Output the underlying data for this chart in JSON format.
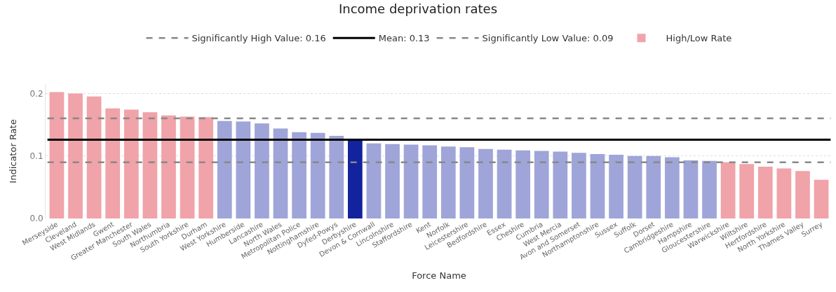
{
  "chart_data": {
    "type": "bar",
    "title": "Income deprivation rates",
    "xlabel": "Force Name",
    "ylabel": "Indicator Rate",
    "categories": [
      "Merseyside",
      "Cleveland",
      "West Midlands",
      "Gwent",
      "Greater Manchester",
      "South Wales",
      "Northumbria",
      "South Yorkshire",
      "Durham",
      "West Yorkshire",
      "Humberside",
      "Lancashire",
      "North Wales",
      "Metropolitan Police",
      "Nottinghamshire",
      "Dyfed-Powys",
      "Derbyshire",
      "Devon & Cornwall",
      "Lincolnshire",
      "Staffordshire",
      "Kent",
      "Norfolk",
      "Leicestershire",
      "Bedfordshire",
      "Essex",
      "Cheshire",
      "Cumbria",
      "West Mercia",
      "Avon and Somerset",
      "Northamptonshire",
      "Sussex",
      "Suffolk",
      "Dorset",
      "Cambridgeshire",
      "Hampshire",
      "Gloucestershire",
      "Warwickshire",
      "Wiltshire",
      "Hertfordshire",
      "North Yorkshire",
      "Thames Valley",
      "Surrey"
    ],
    "series": [
      {
        "name": "High/Low Rate",
        "values": [
          0.202,
          0.2,
          0.195,
          0.176,
          0.174,
          0.17,
          0.165,
          0.163,
          0.162,
          0.156,
          0.155,
          0.152,
          0.144,
          0.138,
          0.137,
          0.132,
          0.126,
          0.12,
          0.119,
          0.118,
          0.117,
          0.115,
          0.114,
          0.111,
          0.11,
          0.109,
          0.108,
          0.107,
          0.105,
          0.103,
          0.102,
          0.1,
          0.1,
          0.098,
          0.093,
          0.092,
          0.09,
          0.087,
          0.083,
          0.08,
          0.076,
          0.062
        ],
        "colors": [
          "#f0a3a9",
          "#f0a3a9",
          "#f0a3a9",
          "#f0a3a9",
          "#f0a3a9",
          "#f0a3a9",
          "#f0a3a9",
          "#f0a3a9",
          "#f0a3a9",
          "#9fa5d8",
          "#9fa5d8",
          "#9fa5d8",
          "#9fa5d8",
          "#9fa5d8",
          "#9fa5d8",
          "#9fa5d8",
          "#13239e",
          "#9fa5d8",
          "#9fa5d8",
          "#9fa5d8",
          "#9fa5d8",
          "#9fa5d8",
          "#9fa5d8",
          "#9fa5d8",
          "#9fa5d8",
          "#9fa5d8",
          "#9fa5d8",
          "#9fa5d8",
          "#9fa5d8",
          "#9fa5d8",
          "#9fa5d8",
          "#9fa5d8",
          "#9fa5d8",
          "#9fa5d8",
          "#9fa5d8",
          "#9fa5d8",
          "#f0a3a9",
          "#f0a3a9",
          "#f0a3a9",
          "#f0a3a9",
          "#f0a3a9",
          "#f0a3a9"
        ]
      }
    ],
    "ylim": [
      0,
      0.215
    ],
    "yticks": [
      {
        "value": 0,
        "label": "0.0"
      },
      {
        "value": 0.1,
        "label": "0.1"
      },
      {
        "value": 0.2,
        "label": "0.2"
      }
    ],
    "grid": "y",
    "legend": "top",
    "ref_lines": [
      {
        "axis": "y",
        "value": 0.16,
        "label": "Significantly High Value: 0.16",
        "color": "#888888",
        "line_style": "dashed"
      },
      {
        "axis": "y",
        "value": 0.126,
        "label": "Mean: 0.13",
        "color": "#000000",
        "line_style": "solid"
      },
      {
        "axis": "y",
        "value": 0.09,
        "label": "Significantly Low Value: 0.09",
        "color": "#888888",
        "line_style": "dashed"
      }
    ]
  }
}
